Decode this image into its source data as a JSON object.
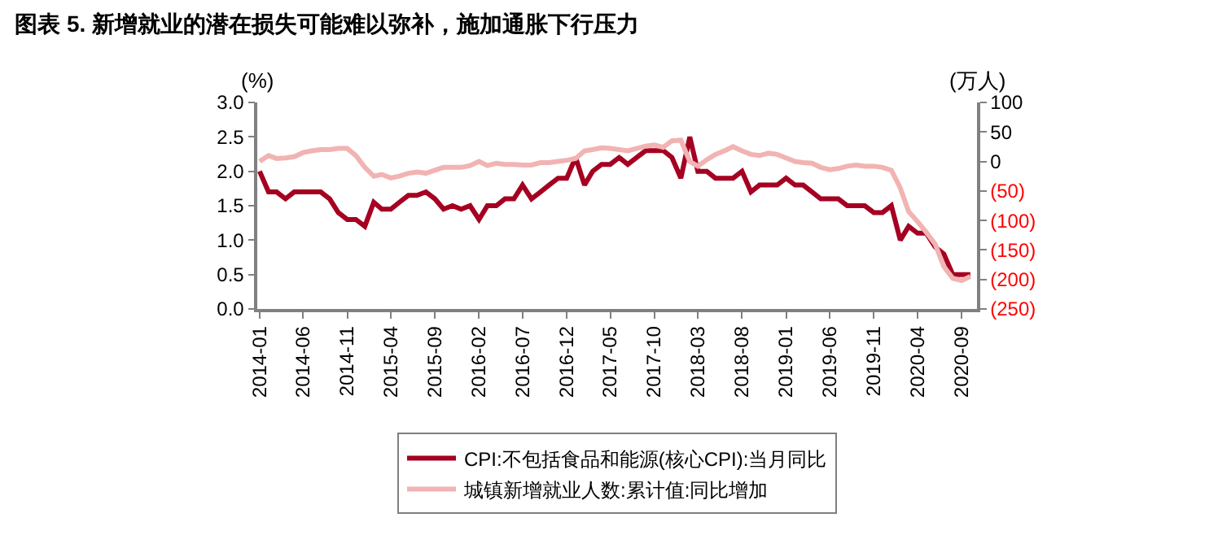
{
  "chart_data": {
    "type": "line",
    "title": "图表 5. 新增就业的潜在损失可能难以弥补，施加通胀下行压力",
    "ylabel": "(%)",
    "y2label": "(万人)",
    "x": [
      "2014-01",
      "2014-02",
      "2014-03",
      "2014-04",
      "2014-05",
      "2014-06",
      "2014-07",
      "2014-08",
      "2014-09",
      "2014-10",
      "2014-11",
      "2014-12",
      "2015-01",
      "2015-02",
      "2015-03",
      "2015-04",
      "2015-05",
      "2015-06",
      "2015-07",
      "2015-08",
      "2015-09",
      "2015-10",
      "2015-11",
      "2015-12",
      "2016-01",
      "2016-02",
      "2016-03",
      "2016-04",
      "2016-05",
      "2016-06",
      "2016-07",
      "2016-08",
      "2016-09",
      "2016-10",
      "2016-11",
      "2016-12",
      "2017-01",
      "2017-02",
      "2017-03",
      "2017-04",
      "2017-05",
      "2017-06",
      "2017-07",
      "2017-08",
      "2017-09",
      "2017-10",
      "2017-11",
      "2017-12",
      "2018-01",
      "2018-02",
      "2018-03",
      "2018-04",
      "2018-05",
      "2018-06",
      "2018-07",
      "2018-08",
      "2018-09",
      "2018-10",
      "2018-11",
      "2018-12",
      "2019-01",
      "2019-02",
      "2019-03",
      "2019-04",
      "2019-05",
      "2019-06",
      "2019-07",
      "2019-08",
      "2019-09",
      "2019-10",
      "2019-11",
      "2019-12",
      "2020-01",
      "2020-02",
      "2020-03",
      "2020-04",
      "2020-05",
      "2020-06",
      "2020-07",
      "2020-08",
      "2020-09",
      "2020-10"
    ],
    "series": [
      {
        "name": "CPI:不包括食品和能源(核心CPI):当月同比",
        "color": "#a50021",
        "values": [
          2.0,
          1.7,
          1.7,
          1.6,
          1.7,
          1.7,
          1.7,
          1.7,
          1.6,
          1.4,
          1.3,
          1.3,
          1.2,
          1.55,
          1.45,
          1.45,
          1.55,
          1.65,
          1.65,
          1.7,
          1.6,
          1.45,
          1.5,
          1.45,
          1.5,
          1.3,
          1.5,
          1.5,
          1.6,
          1.6,
          1.8,
          1.6,
          1.7,
          1.8,
          1.9,
          1.9,
          2.2,
          1.8,
          2.0,
          2.1,
          2.1,
          2.2,
          2.1,
          2.2,
          2.3,
          2.3,
          2.3,
          2.2,
          1.9,
          2.5,
          2.0,
          2.0,
          1.9,
          1.9,
          1.9,
          2.0,
          1.7,
          1.8,
          1.8,
          1.8,
          1.9,
          1.8,
          1.8,
          1.7,
          1.6,
          1.6,
          1.6,
          1.5,
          1.5,
          1.5,
          1.4,
          1.4,
          1.5,
          1.0,
          1.2,
          1.1,
          1.1,
          0.9,
          0.8,
          0.5,
          0.5,
          0.5
        ]
      },
      {
        "name": "城镇新增就业人数:累计值:同比增加",
        "color": "#f2b3b3",
        "axis": "y2",
        "values": [
          0,
          10,
          5,
          6,
          8,
          15,
          18,
          20,
          20,
          22,
          22,
          10,
          -10,
          -25,
          -22,
          -28,
          -25,
          -20,
          -18,
          -20,
          -15,
          -10,
          -10,
          -10,
          -7,
          0,
          -7,
          -3,
          -5,
          -5,
          -6,
          -6,
          -2,
          -2,
          0,
          2,
          5,
          18,
          20,
          23,
          22,
          20,
          18,
          22,
          26,
          28,
          24,
          35,
          36,
          0,
          -8,
          3,
          12,
          18,
          25,
          18,
          12,
          10,
          14,
          12,
          6,
          0,
          -2,
          -3,
          -10,
          -14,
          -12,
          -8,
          -6,
          -8,
          -8,
          -10,
          -15,
          -45,
          -85,
          -102,
          -120,
          -140,
          -178,
          -198,
          -202,
          -195
        ]
      }
    ],
    "xlim": [
      "2013-12-24",
      "2020-10-24"
    ],
    "xticks": [
      {
        "value": "2014-01",
        "label": "2014-01"
      },
      {
        "value": "2014-06",
        "label": "2014-06"
      },
      {
        "value": "2014-11",
        "label": "2014-11"
      },
      {
        "value": "2015-04",
        "label": "2015-04"
      },
      {
        "value": "2015-09",
        "label": "2015-09"
      },
      {
        "value": "2016-02",
        "label": "2016-02"
      },
      {
        "value": "2016-07",
        "label": "2016-07"
      },
      {
        "value": "2016-12",
        "label": "2016-12"
      },
      {
        "value": "2017-05",
        "label": "2017-05"
      },
      {
        "value": "2017-10",
        "label": "2017-10"
      },
      {
        "value": "2018-03",
        "label": "2018-03"
      },
      {
        "value": "2018-08",
        "label": "2018-08"
      },
      {
        "value": "2019-01",
        "label": "2019-01"
      },
      {
        "value": "2019-06",
        "label": "2019-06"
      },
      {
        "value": "2019-11",
        "label": "2019-11"
      },
      {
        "value": "2020-04",
        "label": "2020-04"
      },
      {
        "value": "2020-09",
        "label": "2020-09"
      }
    ],
    "ylim": [
      0,
      3
    ],
    "yticks": [
      {
        "value": 0,
        "label": "0.0"
      },
      {
        "value": 0.5,
        "label": "0.5"
      },
      {
        "value": 1,
        "label": "1.0"
      },
      {
        "value": 1.5,
        "label": "1.5"
      },
      {
        "value": 2,
        "label": "2.0"
      },
      {
        "value": 2.5,
        "label": "2.5"
      },
      {
        "value": 3,
        "label": "3.0"
      }
    ],
    "y2lim": [
      -250,
      100
    ],
    "y2ticks": [
      100,
      50,
      0,
      {
        "value": -50,
        "label": "(50)"
      },
      {
        "value": -100,
        "label": "(100)"
      },
      {
        "value": -150,
        "label": "(150)"
      },
      {
        "value": -200,
        "label": "(200)"
      },
      {
        "value": -250,
        "label": "(250)"
      }
    ],
    "grid": false,
    "legend": "bottom",
    "marker": "none",
    "line_style": "solid"
  }
}
